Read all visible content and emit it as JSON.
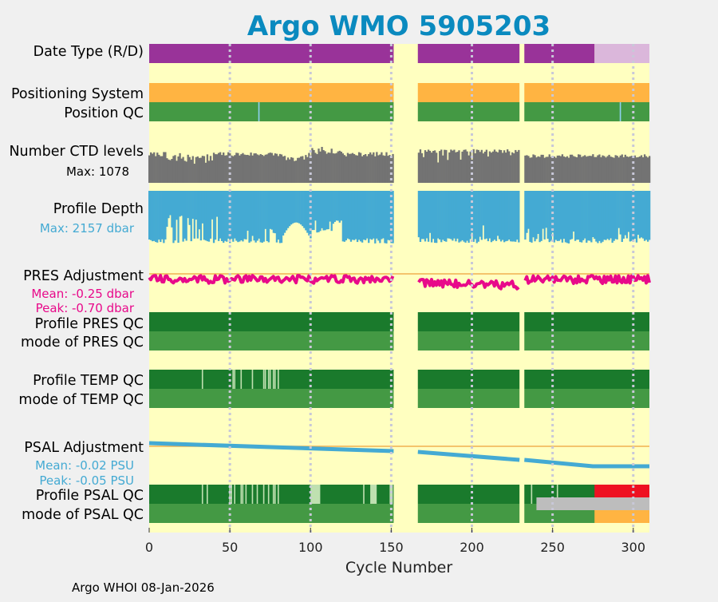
{
  "title": "Argo WMO 5905203",
  "footer": "Argo WHOI 08-Jan-2026",
  "colors": {
    "title": "#0a8abf",
    "panel_bg": "#ffffc0",
    "purple": "#993399",
    "light_purple": "#dbb7db",
    "orange": "#ffb442",
    "mid_green": "#449944",
    "dark_green": "#1a7a2c",
    "pale_green": "#bfe0b0",
    "gray": "#737373",
    "light_gray": "#bdbdbd",
    "blue": "#44aad3",
    "pink": "#e8098a",
    "red": "#ee1122",
    "ref_line": "#f0b050",
    "dotted": "#c8c8d8"
  },
  "chart_data": {
    "type": "timeline",
    "xlabel": "Cycle Number",
    "xlim": [
      0,
      310
    ],
    "xticks": [
      0,
      50,
      100,
      150,
      200,
      250,
      300
    ],
    "cycle_segments": [
      [
        0,
        151.5
      ],
      [
        166.5,
        229.5
      ],
      [
        232.5,
        310
      ]
    ],
    "rows": {
      "date_type": {
        "label": "Date Type (R/D)",
        "spans": [
          [
            0,
            151.5,
            "D"
          ],
          [
            166.5,
            229.5,
            "D"
          ],
          [
            232.5,
            276,
            "D"
          ],
          [
            276,
            310,
            "R"
          ]
        ]
      },
      "positioning_system": {
        "label": "Positioning System"
      },
      "position_qc": {
        "label": "Position QC",
        "flag_cycles": [
          68,
          292
        ]
      },
      "ctd_levels": {
        "label": "Number CTD levels",
        "max_label": "Max: 1078",
        "max": 1078
      },
      "profile_depth": {
        "label": "Profile Depth",
        "max_label": "Max: 2157 dbar",
        "max": 2157
      },
      "pres_adjustment": {
        "label": "PRES Adjustment",
        "mean_label": "Mean: -0.25 dbar",
        "peak_label": "Peak: -0.70 dbar",
        "mean": -0.25,
        "peak": -0.7
      },
      "profile_pres_qc": {
        "label": "Profile PRES QC"
      },
      "mode_pres_qc": {
        "label": "mode of PRES QC"
      },
      "profile_temp_qc": {
        "label": "Profile TEMP QC",
        "flag_cycles": [
          33,
          52,
          53,
          57,
          64,
          71,
          72,
          74,
          75,
          77,
          78,
          80
        ]
      },
      "mode_temp_qc": {
        "label": "mode of TEMP QC"
      },
      "psal_adjustment": {
        "label": "PSAL Adjustment",
        "mean_label": "Mean: -0.02 PSU",
        "peak_label": "Peak: -0.05 PSU",
        "mean": -0.02,
        "peak": -0.05
      },
      "profile_psal_qc": {
        "label": "Profile PSAL QC",
        "flag_cycles": [
          33,
          36,
          50,
          51,
          53,
          57,
          58,
          60,
          64,
          67,
          71,
          74,
          77,
          78,
          80,
          133,
          150,
          237,
          253
        ],
        "pale_spans": [
          [
            100,
            106
          ],
          [
            137,
            141
          ],
          [
            149,
            151
          ]
        ],
        "bad_span": [
          276,
          310
        ]
      },
      "mode_psal_qc": {
        "label": "mode of PSAL QC",
        "gray_span": [
          240,
          310
        ],
        "orange_span": [
          276,
          310
        ]
      }
    }
  }
}
